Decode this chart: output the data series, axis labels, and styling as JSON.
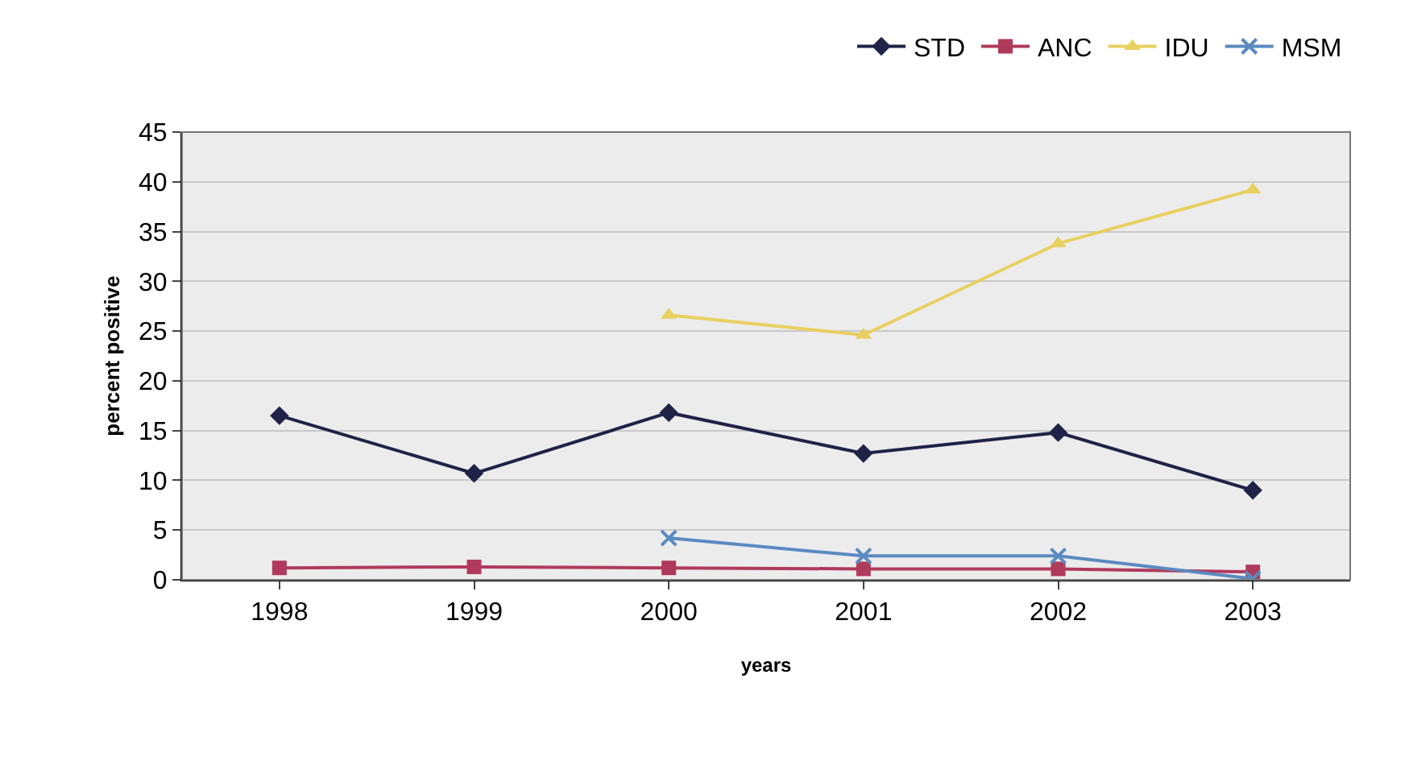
{
  "chart_data": {
    "type": "line",
    "xlabel": "years",
    "ylabel": "percent positive",
    "categories": [
      "1998",
      "1999",
      "2000",
      "2001",
      "2002",
      "2003"
    ],
    "series": [
      {
        "name": "STD",
        "color": "#1f2347",
        "marker": "diamond",
        "values": [
          16.5,
          10.7,
          16.8,
          12.7,
          14.8,
          9.0
        ]
      },
      {
        "name": "ANC",
        "color": "#b03a5b",
        "marker": "square",
        "values": [
          1.2,
          1.3,
          1.2,
          1.1,
          1.1,
          0.8
        ]
      },
      {
        "name": "IDU",
        "color": "#e8d060",
        "marker": "triangle",
        "values": [
          null,
          null,
          26.6,
          24.6,
          33.8,
          39.2
        ]
      },
      {
        "name": "MSM",
        "color": "#5a8ac0",
        "marker": "cross",
        "values": [
          null,
          null,
          4.2,
          2.4,
          2.4,
          0.1
        ]
      }
    ],
    "ylim": [
      0,
      45
    ],
    "yticks": [
      0,
      5,
      10,
      15,
      20,
      25,
      30,
      35,
      40,
      45
    ],
    "grid": "y",
    "legend": "top right",
    "line_style": "solid"
  }
}
